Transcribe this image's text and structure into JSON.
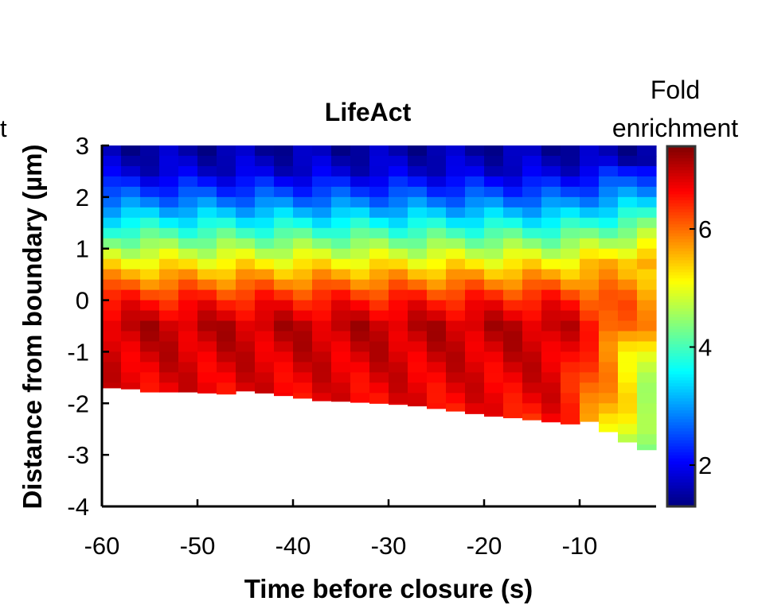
{
  "chart_data": {
    "type": "heatmap",
    "title": "LifeAct",
    "xlabel": "Time before closure (s)",
    "ylabel": "Distance from boundary (µm)",
    "left_edge_fragment": "t",
    "xlim": [
      -60,
      -2
    ],
    "ylim": [
      -4,
      3
    ],
    "x_ticks": [
      -60,
      -50,
      -40,
      -30,
      -20,
      -10
    ],
    "x_tick_labels": [
      "-60",
      "-50",
      "-40",
      "-30",
      "-20",
      "-10"
    ],
    "y_ticks": [
      -4,
      -3,
      -2,
      -1,
      0,
      1,
      2,
      3
    ],
    "y_tick_labels": [
      "-4",
      "-3",
      "-2",
      "-1",
      "0",
      "1",
      "2",
      "3"
    ],
    "colormap": "jet",
    "colorbar": {
      "label_line1": "Fold",
      "label_line2": "enrichment",
      "range": [
        1.3,
        7.4
      ],
      "ticks": [
        2,
        4,
        6
      ],
      "tick_labels": [
        "2",
        "4",
        "6"
      ]
    },
    "time_bins_s": [
      -60,
      -58,
      -56,
      -54,
      -52,
      -50,
      -48,
      -46,
      -44,
      -42,
      -40,
      -38,
      -36,
      -34,
      -32,
      -30,
      -28,
      -26,
      -24,
      -22,
      -20,
      -18,
      -16,
      -14,
      -12,
      -10,
      -8,
      -6,
      -4,
      -2
    ],
    "lower_boundary_um": [
      -1.7,
      -1.72,
      -1.78,
      -1.78,
      -1.78,
      -1.8,
      -1.82,
      -1.76,
      -1.8,
      -1.85,
      -1.9,
      -1.95,
      -1.96,
      -1.98,
      -2.0,
      -2.02,
      -2.05,
      -2.1,
      -2.15,
      -2.2,
      -2.25,
      -2.28,
      -2.32,
      -2.36,
      -2.4,
      -2.35,
      -2.55,
      -2.75,
      -2.9,
      -3.05
    ],
    "mean_profile": {
      "distance_um": [
        3.0,
        2.5,
        2.0,
        1.5,
        1.0,
        0.5,
        0.0,
        -0.5,
        -1.0,
        -1.5,
        -2.0,
        -2.5,
        -3.0
      ],
      "fold_enrichment": [
        1.5,
        1.8,
        2.6,
        3.6,
        4.6,
        5.6,
        6.5,
        7.0,
        6.9,
        6.8,
        6.7,
        6.4,
        6.0
      ]
    }
  }
}
